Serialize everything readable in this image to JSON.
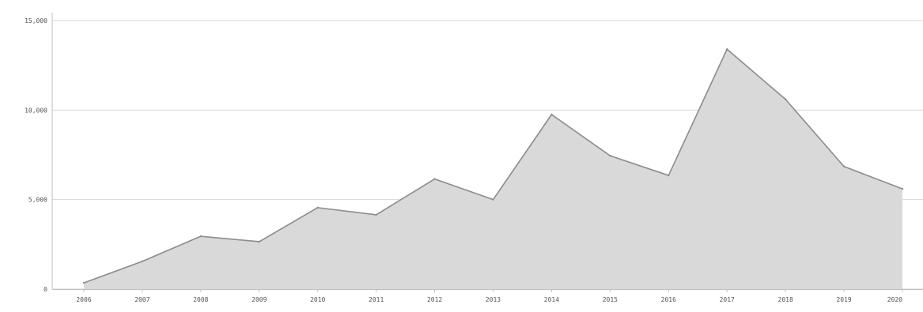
{
  "chart_data": {
    "type": "area",
    "title": "",
    "xlabel": "",
    "ylabel": "",
    "x": [
      "2006",
      "2007",
      "2008",
      "2009",
      "2010",
      "2011",
      "2012",
      "2013",
      "2014",
      "2015",
      "2016",
      "2017",
      "2018",
      "2019",
      "2020"
    ],
    "values": [
      350,
      1550,
      2950,
      2650,
      4550,
      4150,
      6150,
      5000,
      9750,
      7450,
      6350,
      13400,
      10600,
      6850,
      5600
    ],
    "ylim": [
      0,
      15000
    ],
    "yticks": [
      0,
      5000,
      10000,
      15000
    ],
    "ytick_labels": [
      "0",
      "5,000",
      "10,000",
      "15,000"
    ],
    "grid": true,
    "legend": "none",
    "colors": {
      "fill": "#d9d9d9",
      "line": "#8c8c8c",
      "grid": "#d6d6d6",
      "axis": "#bfbfbf"
    }
  }
}
